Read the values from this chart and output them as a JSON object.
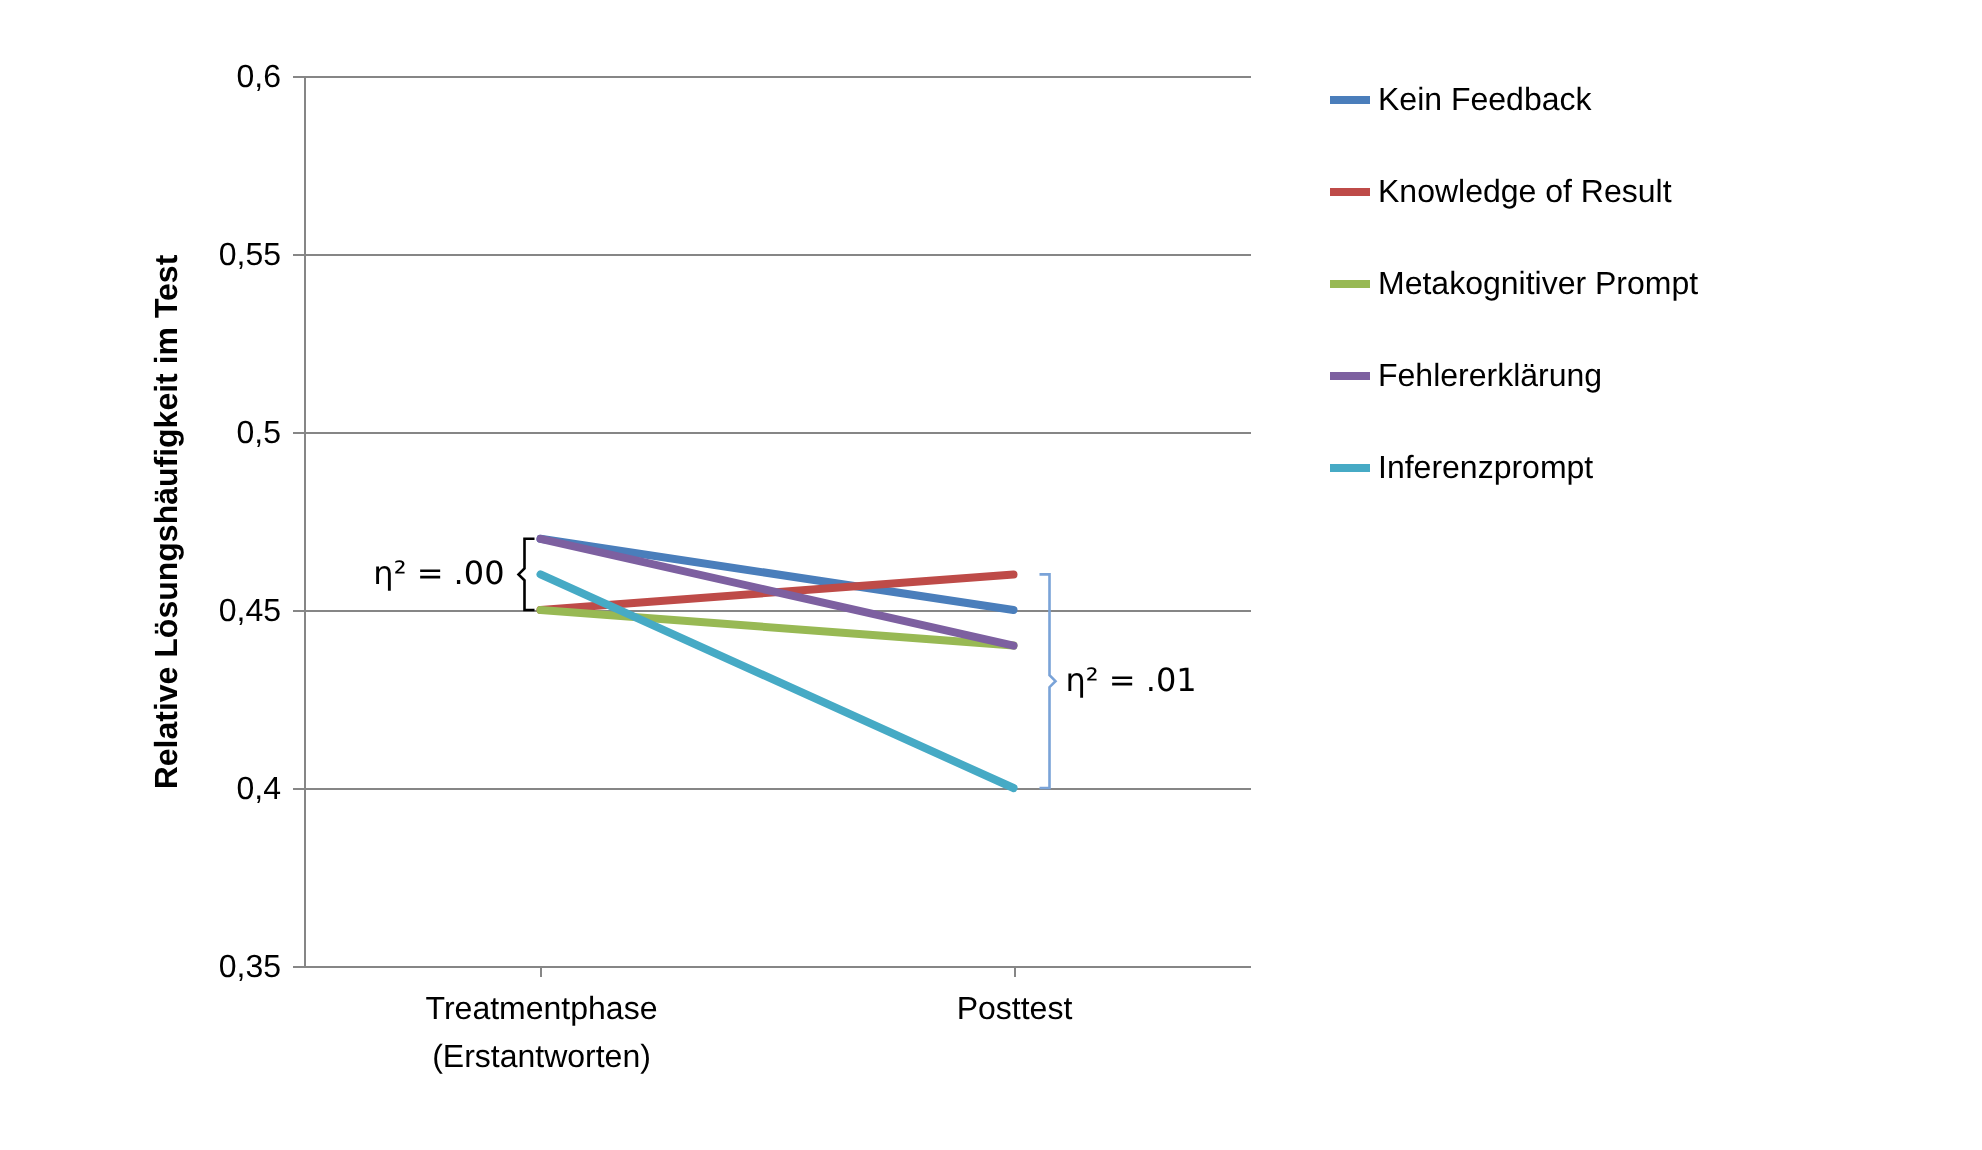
{
  "chart_data": {
    "type": "line",
    "ylabel": "Relative Lösungshäufigkeit im Test",
    "categories": [
      "Treatmentphase\n(Erstantworten)",
      "Posttest"
    ],
    "series": [
      {
        "name": "Kein Feedback",
        "color": "#4a7ebb",
        "values": [
          0.47,
          0.45
        ]
      },
      {
        "name": "Knowledge of Result",
        "color": "#be4b48",
        "values": [
          0.45,
          0.46
        ]
      },
      {
        "name": "Metakognitiver Prompt",
        "color": "#98b954",
        "values": [
          0.45,
          0.44
        ]
      },
      {
        "name": "Fehlererklärung",
        "color": "#7d60a0",
        "values": [
          0.47,
          0.44
        ]
      },
      {
        "name": "Inferenzprompt",
        "color": "#46aac5",
        "values": [
          0.46,
          0.4
        ]
      }
    ],
    "ylim": [
      0.35,
      0.6
    ],
    "yticks": [
      {
        "value": 0.35,
        "label": "0,35"
      },
      {
        "value": 0.4,
        "label": "0,4"
      },
      {
        "value": 0.45,
        "label": "0,45"
      },
      {
        "value": 0.5,
        "label": "0,5"
      },
      {
        "value": 0.55,
        "label": "0,55"
      },
      {
        "value": 0.6,
        "label": "0,6"
      }
    ],
    "grid": "y",
    "legend": "right",
    "marker": "none",
    "line_style": "solid",
    "annotations": [
      "η² = .00",
      "η² = .01"
    ]
  }
}
